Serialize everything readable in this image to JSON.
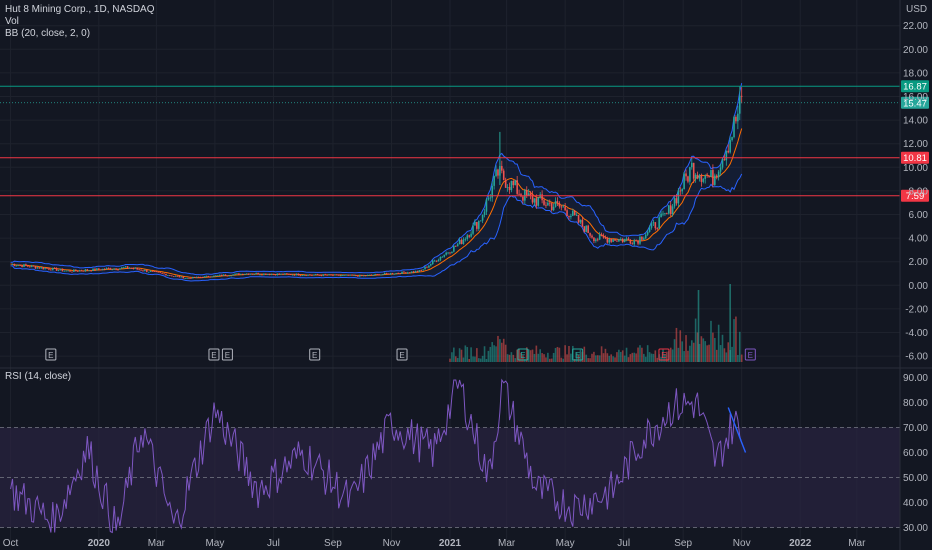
{
  "header": {
    "symbol_line": "Hut 8 Mining Corp., 1D, NASDAQ",
    "vol_label": "Vol",
    "bb_label": "BB (20, close, 2, 0)",
    "rsi_label": "RSI (14, close)"
  },
  "currency": "USD",
  "chart_data": [
    {
      "type": "line",
      "title": "Hut 8 Mining Corp., 1D, NASDAQ",
      "ylabel": "USD",
      "ylim": [
        -6.5,
        23.5
      ],
      "x_tick_labels": [
        "Oct",
        "2020",
        "Mar",
        "May",
        "Jul",
        "Sep",
        "Nov",
        "2021",
        "Mar",
        "May",
        "Jul",
        "Sep",
        "Nov",
        "2022",
        "Mar"
      ],
      "y_tick_labels": [
        "22.00",
        "20.00",
        "18.00",
        "16.00",
        "14.00",
        "12.00",
        "10.00",
        "8.00",
        "6.00",
        "4.00",
        "2.00",
        "0.00",
        "-2.00",
        "-4.00",
        "-6.00"
      ],
      "price_series": [
        {
          "date": "2019-10-01",
          "close": 1.8
        },
        {
          "date": "2019-12-01",
          "close": 1.2
        },
        {
          "date": "2020-02-01",
          "close": 1.5
        },
        {
          "date": "2020-04-01",
          "close": 0.6
        },
        {
          "date": "2020-06-01",
          "close": 1.0
        },
        {
          "date": "2020-08-01",
          "close": 0.9
        },
        {
          "date": "2020-10-01",
          "close": 0.8
        },
        {
          "date": "2020-12-01",
          "close": 1.2
        },
        {
          "date": "2021-01-10",
          "close": 3.5
        },
        {
          "date": "2021-02-01",
          "close": 5.5
        },
        {
          "date": "2021-02-20",
          "close": 9.5
        },
        {
          "date": "2021-03-20",
          "close": 7.5
        },
        {
          "date": "2021-05-01",
          "close": 6.5
        },
        {
          "date": "2021-06-01",
          "close": 4.0
        },
        {
          "date": "2021-07-15",
          "close": 3.8
        },
        {
          "date": "2021-08-15",
          "close": 6.0
        },
        {
          "date": "2021-09-10",
          "close": 10.0
        },
        {
          "date": "2021-10-01",
          "close": 9.0
        },
        {
          "date": "2021-10-20",
          "close": 12.5
        },
        {
          "date": "2021-11-01",
          "close": 15.5
        }
      ],
      "horizontal_levels": [
        {
          "value": 16.87,
          "label": "16.87",
          "color": "#089981"
        },
        {
          "value": 15.47,
          "label": "15.47",
          "color": "#26a69a"
        },
        {
          "value": 10.81,
          "label": "10.81",
          "color": "#f23645"
        },
        {
          "value": 7.59,
          "label": "7.59",
          "color": "#f23645"
        }
      ],
      "earnings_markers": [
        "E",
        "E",
        "E",
        "E",
        "E",
        "E",
        "E",
        "E",
        "E"
      ]
    },
    {
      "type": "line",
      "title": "RSI (14, close)",
      "ylim": [
        27,
        93
      ],
      "y_tick_labels": [
        "90.00",
        "80.00",
        "70.00",
        "60.00",
        "50.00",
        "40.00",
        "30.00"
      ],
      "overbought": 70,
      "oversold": 30,
      "rsi_series": [
        {
          "date": "2019-10-01",
          "rsi": 45
        },
        {
          "date": "2019-11-15",
          "rsi": 32
        },
        {
          "date": "2019-12-20",
          "rsi": 62
        },
        {
          "date": "2020-01-20",
          "rsi": 28
        },
        {
          "date": "2020-02-15",
          "rsi": 70
        },
        {
          "date": "2020-03-20",
          "rsi": 30
        },
        {
          "date": "2020-05-01",
          "rsi": 77
        },
        {
          "date": "2020-06-15",
          "rsi": 45
        },
        {
          "date": "2020-08-01",
          "rsi": 60
        },
        {
          "date": "2020-09-20",
          "rsi": 40
        },
        {
          "date": "2020-11-01",
          "rsi": 72
        },
        {
          "date": "2020-12-15",
          "rsi": 60
        },
        {
          "date": "2021-01-10",
          "rsi": 88
        },
        {
          "date": "2021-02-10",
          "rsi": 50
        },
        {
          "date": "2021-02-25",
          "rsi": 87
        },
        {
          "date": "2021-04-01",
          "rsi": 45
        },
        {
          "date": "2021-05-10",
          "rsi": 38
        },
        {
          "date": "2021-06-20",
          "rsi": 45
        },
        {
          "date": "2021-07-20",
          "rsi": 65
        },
        {
          "date": "2021-08-20",
          "rsi": 78
        },
        {
          "date": "2021-09-15",
          "rsi": 80
        },
        {
          "date": "2021-10-05",
          "rsi": 56
        },
        {
          "date": "2021-10-25",
          "rsi": 73
        },
        {
          "date": "2021-11-03",
          "rsi": 62
        }
      ]
    }
  ],
  "colors": {
    "background": "#131722",
    "grid": "#1e222d",
    "bb_band": "#2962ff",
    "bb_basis": "#ff6d00",
    "rsi_line": "#7e57c2",
    "rsi_fill": "#2a2340",
    "up": "#26a69a",
    "down": "#ef5350"
  }
}
